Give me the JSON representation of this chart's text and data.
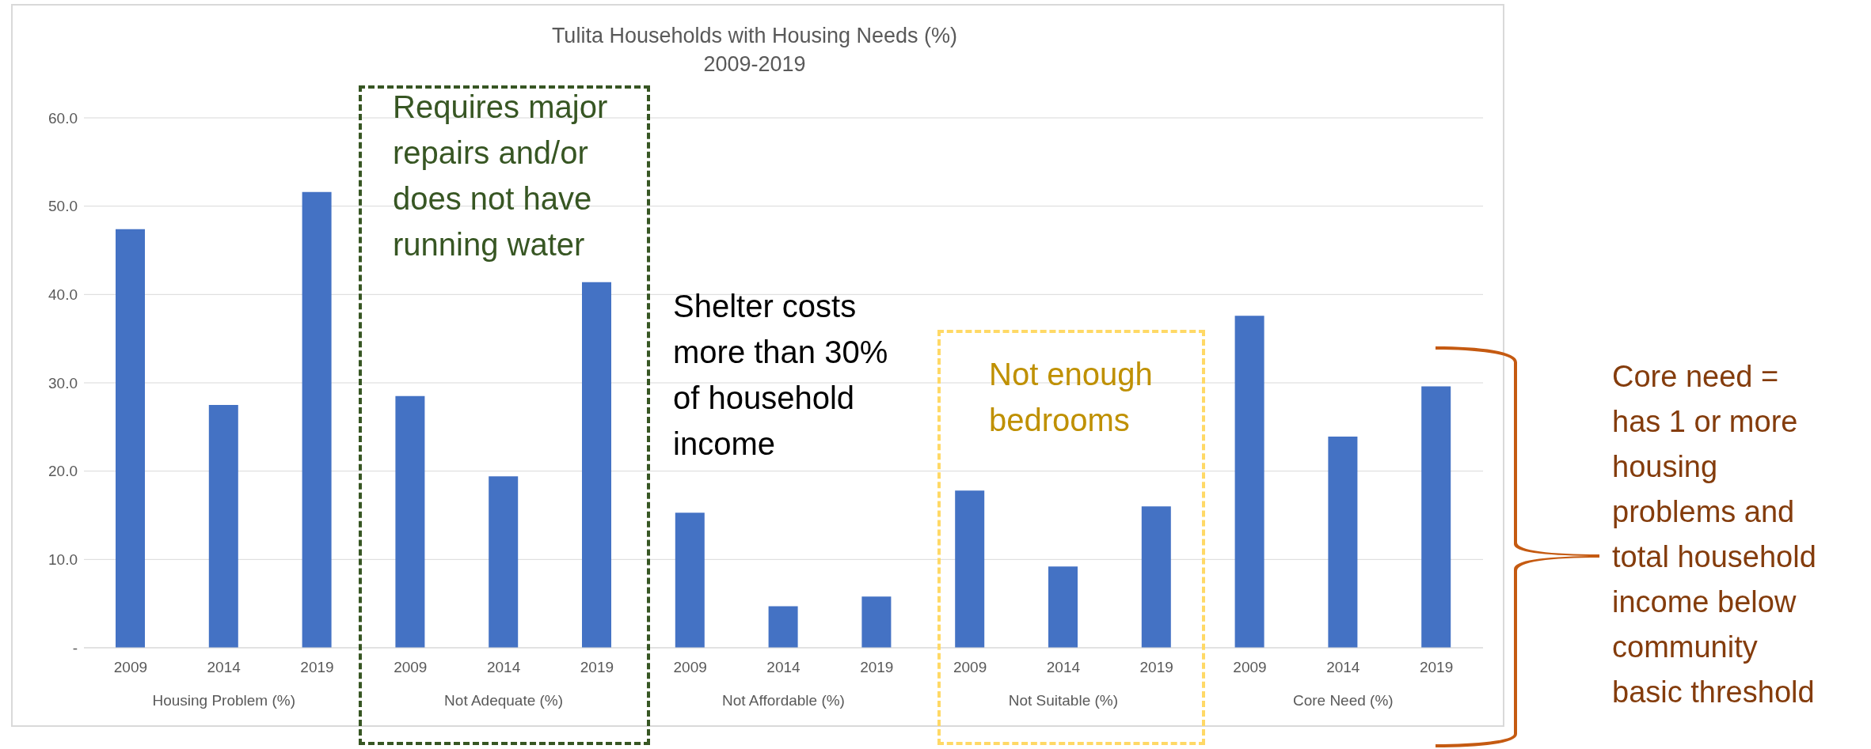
{
  "chart_data": {
    "type": "bar",
    "title": "Tulita Households with Housing Needs (%)",
    "subtitle": "2009-2019",
    "categories": [
      "2009",
      "2014",
      "2019",
      "2009",
      "2014",
      "2019",
      "2009",
      "2014",
      "2019",
      "2009",
      "2014",
      "2019",
      "2009",
      "2014",
      "2019"
    ],
    "values": [
      47.4,
      27.5,
      51.6,
      28.5,
      19.4,
      41.4,
      15.3,
      4.7,
      5.8,
      17.8,
      9.2,
      16.0,
      37.6,
      23.9,
      29.6
    ],
    "color": "#4472c4",
    "ylim": [
      0,
      60
    ],
    "yticks": [
      {
        "value": 0,
        "label": "-"
      },
      {
        "value": 10,
        "label": "10.0"
      },
      {
        "value": 20,
        "label": "20.0"
      },
      {
        "value": 30,
        "label": "30.0"
      },
      {
        "value": 40,
        "label": "40.0"
      },
      {
        "value": 50,
        "label": "50.0"
      },
      {
        "value": 60,
        "label": "60.0"
      }
    ],
    "grid": "y",
    "legend": false,
    "annotations": [
      "Housing Problem (%)",
      "Not Adequate (%)",
      "Not Affordable (%)",
      "Not Suitable (%)",
      "Core Need (%)",
      "Requires major repairs and/or does not have running water",
      "Shelter costs more than 30% of household income",
      "Not enough bedrooms",
      "Core need = has 1 or more housing problems and total household income below community basic threshold"
    ]
  }
}
